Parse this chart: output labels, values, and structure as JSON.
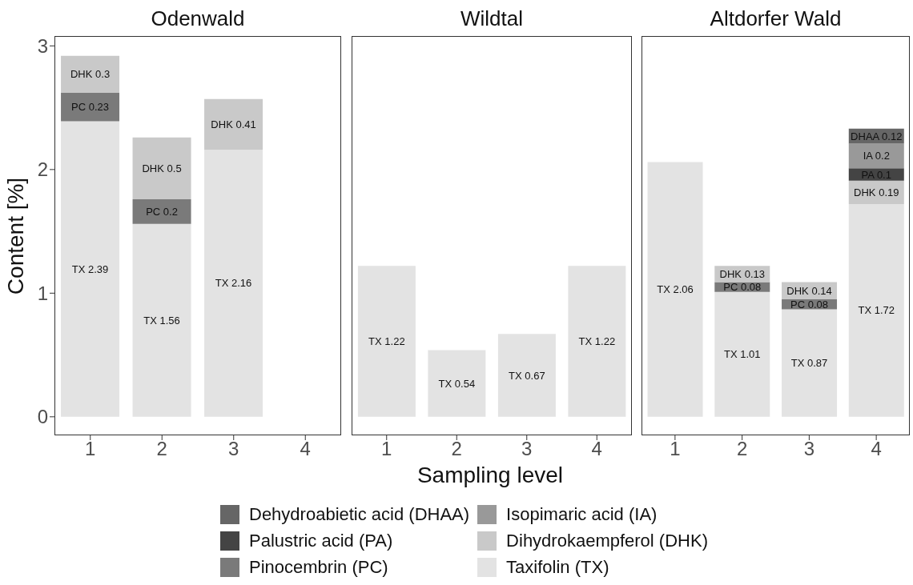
{
  "chart_data": [
    {
      "type": "bar",
      "stacked": true,
      "title": "Odenwald",
      "ylabel": "Content [%]",
      "categories": [
        "1",
        "2",
        "3",
        "4"
      ],
      "ylim": [
        -0.15,
        3.08
      ],
      "yticks": [
        0,
        1,
        2,
        3
      ],
      "series": [
        {
          "color": "#e3e3e3",
          "values": [
            2.39,
            1.56,
            2.16,
            null
          ],
          "value_labels": [
            "TX 2.39",
            "TX 1.56",
            "TX 2.16",
            null
          ]
        },
        {
          "color": "#7a7a7a",
          "values": [
            0.23,
            0.2,
            null,
            null
          ],
          "value_labels": [
            "PC 0.23",
            "PC 0.2",
            null,
            null
          ]
        },
        {
          "color": "#c9c9c9",
          "values": [
            0.3,
            0.5,
            0.41,
            null
          ],
          "value_labels": [
            "DHK 0.3",
            "DHK 0.5",
            "DHK 0.41",
            null
          ]
        }
      ]
    },
    {
      "type": "bar",
      "stacked": true,
      "title": "Wildtal",
      "xlabel": "Sampling level",
      "categories": [
        "1",
        "2",
        "3",
        "4"
      ],
      "ylim": [
        -0.15,
        3.08
      ],
      "yticks": [
        0,
        1,
        2,
        3
      ],
      "tick_labels": "x",
      "series": [
        {
          "color": "#e3e3e3",
          "values": [
            1.22,
            0.54,
            0.67,
            1.22
          ],
          "value_labels": [
            "TX 1.22",
            "TX 0.54",
            "TX 0.67",
            "TX 1.22"
          ]
        }
      ]
    },
    {
      "type": "bar",
      "stacked": true,
      "title": "Altdorfer Wald",
      "categories": [
        "1",
        "2",
        "3",
        "4"
      ],
      "ylim": [
        -0.15,
        3.08
      ],
      "yticks": [
        0,
        1,
        2,
        3
      ],
      "tick_labels": "x",
      "legend": "bottom",
      "series": [
        {
          "name": "Taxifolin (TX)",
          "color": "#e3e3e3",
          "values": [
            2.06,
            1.01,
            0.87,
            1.72
          ],
          "value_labels": [
            "TX 2.06",
            "TX 1.01",
            "TX 0.87",
            "TX 1.72"
          ]
        },
        {
          "name": "Pinocembrin (PC)",
          "color": "#7a7a7a",
          "values": [
            null,
            0.08,
            0.08,
            null
          ],
          "value_labels": [
            null,
            "PC 0.08",
            "PC 0.08",
            null
          ]
        },
        {
          "name": "Dihydrokaempferol (DHK)",
          "color": "#c9c9c9",
          "values": [
            null,
            0.13,
            0.14,
            0.19
          ],
          "value_labels": [
            null,
            "DHK 0.13",
            "DHK 0.14",
            "DHK 0.19"
          ]
        },
        {
          "name": "Palustric acid (PA)",
          "color": "#444444",
          "values": [
            null,
            null,
            null,
            0.1
          ],
          "value_labels": [
            null,
            null,
            null,
            "PA 0.1"
          ]
        },
        {
          "name": "Isopimaric acid (IA)",
          "color": "#999999",
          "values": [
            null,
            null,
            null,
            0.2
          ],
          "value_labels": [
            null,
            null,
            null,
            "IA 0.2"
          ]
        },
        {
          "name": "Dehydroabietic acid (DHAA)",
          "color": "#666666",
          "values": [
            null,
            null,
            null,
            0.12
          ],
          "value_labels": [
            null,
            null,
            null,
            "DHAA 0.12"
          ]
        }
      ]
    }
  ]
}
